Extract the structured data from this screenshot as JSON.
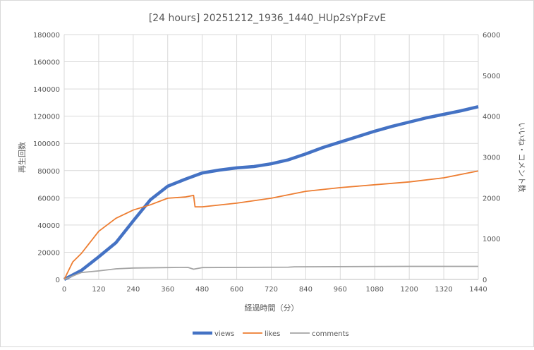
{
  "chart_data": {
    "type": "line",
    "title": "[24 hours] 20251212_1936_1440_HUp2sYpFzvE",
    "xlabel": "経過時間（分）",
    "ylabel": "再生回数",
    "y2label": "いいね・コメント数",
    "xlim": [
      0,
      1440
    ],
    "ylim": [
      0,
      180000
    ],
    "y2lim": [
      0,
      6000
    ],
    "xticks": [
      0,
      120,
      240,
      360,
      480,
      600,
      720,
      840,
      960,
      1080,
      1200,
      1320,
      1440
    ],
    "yticks": [
      0,
      20000,
      40000,
      60000,
      80000,
      100000,
      120000,
      140000,
      160000,
      180000
    ],
    "y2ticks": [
      0,
      1000,
      2000,
      3000,
      4000,
      5000,
      6000
    ],
    "grid": true,
    "legend": "bottom",
    "series": [
      {
        "name": "views",
        "axis": "left",
        "color": "#4472C4",
        "x": [
          0,
          60,
          120,
          180,
          240,
          300,
          360,
          420,
          480,
          540,
          600,
          660,
          720,
          780,
          840,
          900,
          960,
          1020,
          1080,
          1140,
          1200,
          1260,
          1320,
          1380,
          1440
        ],
        "y": [
          0,
          6700,
          16600,
          27000,
          43000,
          58600,
          68500,
          73600,
          78300,
          80400,
          82000,
          83000,
          85000,
          88000,
          92300,
          97000,
          101000,
          105000,
          109000,
          112500,
          115700,
          118800,
          121400,
          124000,
          127000
        ]
      },
      {
        "name": "likes",
        "axis": "right",
        "color": "#ED7D31",
        "x": [
          0,
          30,
          60,
          120,
          180,
          240,
          300,
          360,
          420,
          450,
          455,
          480,
          600,
          720,
          840,
          960,
          1080,
          1200,
          1320,
          1440
        ],
        "y": [
          0,
          430,
          640,
          1180,
          1500,
          1700,
          1830,
          1990,
          2020,
          2060,
          1780,
          1780,
          1870,
          1990,
          2160,
          2250,
          2320,
          2390,
          2490,
          2660
        ]
      },
      {
        "name": "comments",
        "axis": "right",
        "color": "#A5A5A5",
        "x": [
          0,
          60,
          120,
          180,
          240,
          360,
          430,
          450,
          480,
          780,
          800,
          1200,
          1440
        ],
        "y": [
          0,
          170,
          210,
          260,
          280,
          290,
          295,
          250,
          290,
          300,
          310,
          320,
          320
        ]
      }
    ]
  }
}
